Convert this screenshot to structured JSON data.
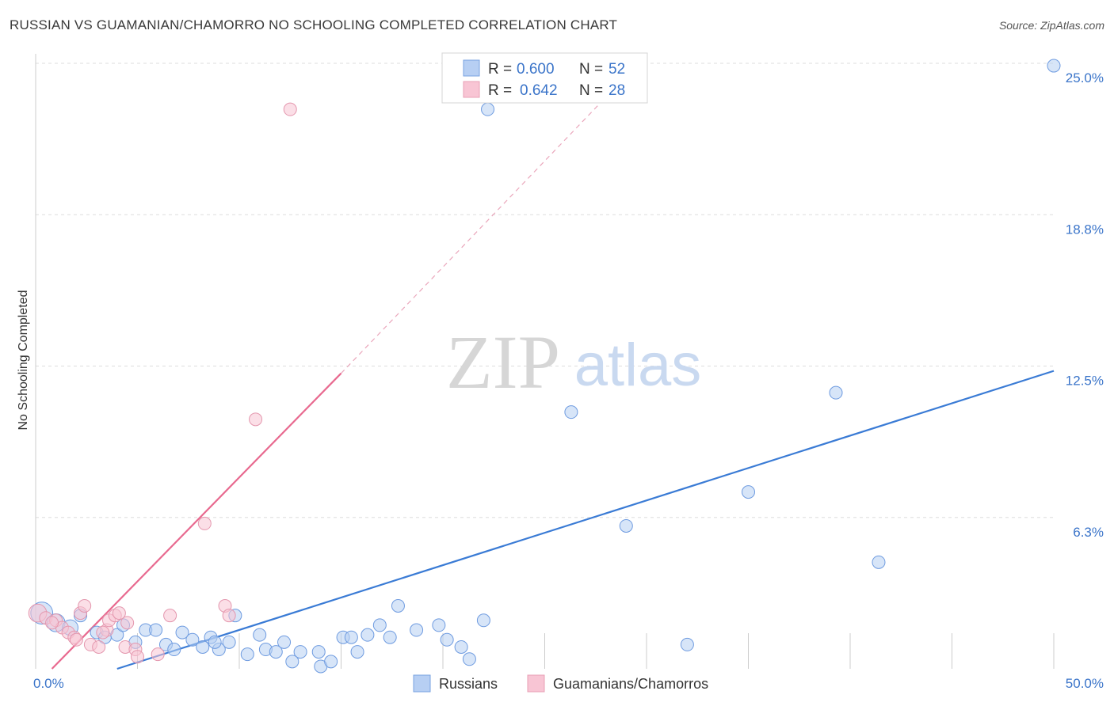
{
  "title": "RUSSIAN VS GUAMANIAN/CHAMORRO NO SCHOOLING COMPLETED CORRELATION CHART",
  "source": "Source: ZipAtlas.com",
  "colors": {
    "blue": "#3a7bd5",
    "blue_fill": "#b7cff3",
    "pink": "#e8698f",
    "pink_fill": "#f8c5d4",
    "tick": "#3a74c9",
    "grid": "#dddddd"
  },
  "legend": {
    "rows": [
      {
        "r_label": "R =",
        "r_value": "0.600",
        "n_label": "N =",
        "n_value": "52"
      },
      {
        "r_label": "R =",
        "r_value": "0.642",
        "n_label": "N =",
        "n_value": "28"
      }
    ]
  },
  "chart_data": {
    "type": "scatter",
    "title": "RUSSIAN VS GUAMANIAN/CHAMORRO NO SCHOOLING COMPLETED CORRELATION CHART",
    "xlabel": "",
    "ylabel": "No Schooling Completed",
    "xlim": [
      0,
      50
    ],
    "ylim": [
      0,
      25
    ],
    "x_tick_labels": [
      "0.0%",
      "50.0%"
    ],
    "y_ticks": [
      {
        "value": 6.25,
        "label": "6.3%"
      },
      {
        "value": 12.5,
        "label": "12.5%"
      },
      {
        "value": 18.75,
        "label": "18.8%"
      },
      {
        "value": 25.0,
        "label": "25.0%"
      }
    ],
    "series": [
      {
        "name": "Russians",
        "color": "blue",
        "points": [
          [
            0.3,
            2.3,
            3
          ],
          [
            1.0,
            1.9,
            2
          ],
          [
            1.7,
            1.7,
            1.5
          ],
          [
            2.2,
            2.2,
            1
          ],
          [
            3.0,
            1.5,
            1
          ],
          [
            3.4,
            1.3,
            1
          ],
          [
            4.0,
            1.4,
            1
          ],
          [
            4.3,
            1.8,
            1
          ],
          [
            4.9,
            1.1,
            1
          ],
          [
            5.4,
            1.6,
            1
          ],
          [
            5.9,
            1.6,
            1
          ],
          [
            6.4,
            1.0,
            1
          ],
          [
            6.8,
            0.8,
            1
          ],
          [
            7.2,
            1.5,
            1
          ],
          [
            7.7,
            1.2,
            1
          ],
          [
            8.2,
            0.9,
            1
          ],
          [
            8.6,
            1.3,
            1
          ],
          [
            9.0,
            0.8,
            1
          ],
          [
            9.5,
            1.1,
            1
          ],
          [
            9.8,
            2.2,
            1
          ],
          [
            10.4,
            0.6,
            1
          ],
          [
            11.0,
            1.4,
            1
          ],
          [
            11.3,
            0.8,
            1
          ],
          [
            11.8,
            0.7,
            1
          ],
          [
            12.2,
            1.1,
            1
          ],
          [
            13.0,
            0.7,
            1
          ],
          [
            13.9,
            0.7,
            1
          ],
          [
            14.0,
            0.1,
            1
          ],
          [
            14.5,
            0.3,
            1
          ],
          [
            15.1,
            1.3,
            1
          ],
          [
            15.5,
            1.3,
            1
          ],
          [
            15.8,
            0.7,
            1
          ],
          [
            16.3,
            1.4,
            1
          ],
          [
            16.9,
            1.8,
            1
          ],
          [
            17.4,
            1.3,
            1
          ],
          [
            17.8,
            2.6,
            1
          ],
          [
            18.7,
            1.6,
            1
          ],
          [
            19.8,
            1.8,
            1
          ],
          [
            20.2,
            1.2,
            1
          ],
          [
            20.9,
            0.9,
            1
          ],
          [
            21.3,
            0.4,
            1
          ],
          [
            22.0,
            2.0,
            1
          ],
          [
            22.2,
            23.1,
            1
          ],
          [
            26.3,
            10.6,
            1
          ],
          [
            29.0,
            5.9,
            1
          ],
          [
            32.0,
            1.0,
            1
          ],
          [
            35.0,
            7.3,
            1
          ],
          [
            39.3,
            11.4,
            1
          ],
          [
            41.4,
            4.4,
            1
          ],
          [
            50.0,
            24.9,
            1
          ],
          [
            12.6,
            0.3,
            1
          ],
          [
            8.8,
            1.1,
            1
          ]
        ],
        "trend": {
          "x": [
            4.0,
            50.0
          ],
          "y": [
            0.0,
            12.3
          ]
        }
      },
      {
        "name": "Guamanians/Chamorros",
        "color": "pink",
        "points": [
          [
            0.1,
            2.3,
            2
          ],
          [
            0.5,
            2.1,
            1
          ],
          [
            1.0,
            2.0,
            1
          ],
          [
            1.3,
            1.7,
            1
          ],
          [
            1.6,
            1.5,
            1
          ],
          [
            1.9,
            1.3,
            1
          ],
          [
            2.2,
            2.3,
            1
          ],
          [
            2.4,
            2.6,
            1
          ],
          [
            2.7,
            1.0,
            1
          ],
          [
            3.1,
            0.9,
            1
          ],
          [
            3.5,
            1.6,
            1
          ],
          [
            3.6,
            2.0,
            1
          ],
          [
            3.9,
            2.2,
            1
          ],
          [
            4.1,
            2.3,
            1
          ],
          [
            4.4,
            0.9,
            1
          ],
          [
            4.5,
            1.9,
            1
          ],
          [
            4.9,
            0.8,
            1
          ],
          [
            5.0,
            0.5,
            1
          ],
          [
            6.0,
            0.6,
            1
          ],
          [
            6.6,
            2.2,
            1
          ],
          [
            8.3,
            6.0,
            1
          ],
          [
            9.3,
            2.6,
            1
          ],
          [
            9.5,
            2.2,
            1
          ],
          [
            10.8,
            10.3,
            1
          ],
          [
            12.5,
            23.1,
            1
          ],
          [
            0.8,
            1.9,
            1
          ],
          [
            2.0,
            1.2,
            1
          ],
          [
            3.3,
            1.5,
            1
          ]
        ],
        "trend_solid": {
          "x": [
            0.8,
            15.0
          ],
          "y": [
            0.0,
            12.2
          ]
        },
        "trend_dashed": {
          "x": [
            15.0,
            28.8
          ],
          "y": [
            12.2,
            24.3
          ]
        }
      }
    ],
    "legend_items": [
      "Russians",
      "Guamanians/Chamorros"
    ],
    "watermark": {
      "part1": "ZIP",
      "part2": "atlas"
    }
  }
}
